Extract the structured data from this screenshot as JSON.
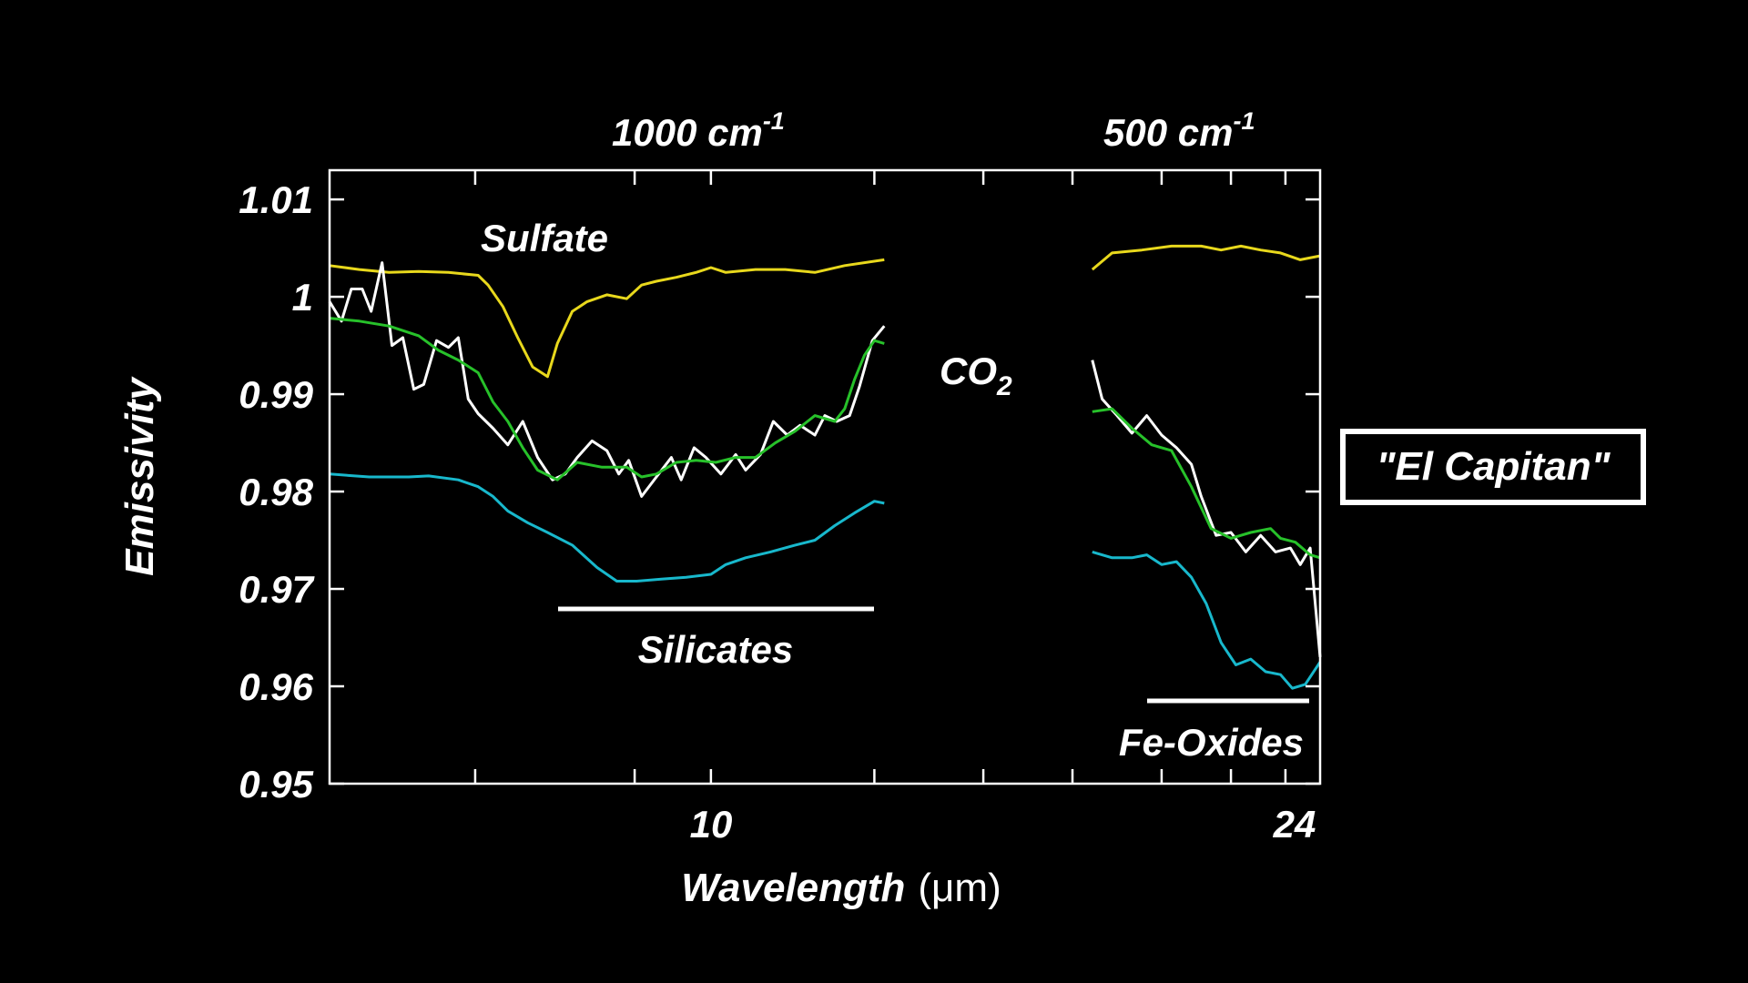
{
  "chart_data": {
    "type": "line",
    "top_axis_labels": [
      {
        "text": "1000 cm",
        "sup": "-1"
      },
      {
        "text": "500 cm",
        "sup": "-1"
      }
    ],
    "xlabel": "Wavelength",
    "xlabel_unit": "(μm)",
    "ylabel": "Emissivity",
    "x_tick_labels": [
      "10",
      "24"
    ],
    "y_ticks": [
      0.95,
      0.96,
      0.97,
      0.98,
      0.99,
      1.0,
      1.01
    ],
    "y_tick_labels": [
      "0.95",
      "0.96",
      "0.97",
      "0.98",
      "0.99",
      "1",
      "1.01"
    ],
    "ylim": [
      0.95,
      1.013
    ],
    "xlim": [
      0,
      1
    ],
    "grid": false,
    "annotations": {
      "sulfate": "Sulfate",
      "silicates": "Silicates",
      "fe_oxides": "Fe-Oxides",
      "co2_main": "CO",
      "co2_sub": "2"
    },
    "sample_box": "\"El Capitan\"",
    "segments": [
      {
        "x_range": [
          0,
          0.56
        ]
      },
      {
        "x_range": [
          0.77,
          1.0
        ]
      }
    ],
    "series": [
      {
        "color": "#e8d81c",
        "points": [
          [
            0.0,
            1.0032
          ],
          [
            0.03,
            1.0028
          ],
          [
            0.06,
            1.0025
          ],
          [
            0.09,
            1.0026
          ],
          [
            0.12,
            1.0025
          ],
          [
            0.15,
            1.0022
          ],
          [
            0.16,
            1.0012
          ],
          [
            0.175,
            0.999
          ],
          [
            0.19,
            0.9958
          ],
          [
            0.205,
            0.9928
          ],
          [
            0.22,
            0.9918
          ],
          [
            0.23,
            0.9952
          ],
          [
            0.245,
            0.9985
          ],
          [
            0.26,
            0.9995
          ],
          [
            0.28,
            1.0002
          ],
          [
            0.3,
            0.9998
          ],
          [
            0.315,
            1.0012
          ],
          [
            0.33,
            1.0016
          ],
          [
            0.35,
            1.002
          ],
          [
            0.37,
            1.0025
          ],
          [
            0.385,
            1.003
          ],
          [
            0.4,
            1.0025
          ],
          [
            0.43,
            1.0028
          ],
          [
            0.46,
            1.0028
          ],
          [
            0.49,
            1.0025
          ],
          [
            0.52,
            1.0032
          ],
          [
            0.56,
            1.0038
          ],
          [
            0.77,
            1.0028
          ],
          [
            0.79,
            1.0045
          ],
          [
            0.82,
            1.0048
          ],
          [
            0.85,
            1.0052
          ],
          [
            0.88,
            1.0052
          ],
          [
            0.9,
            1.0048
          ],
          [
            0.92,
            1.0052
          ],
          [
            0.94,
            1.0048
          ],
          [
            0.96,
            1.0045
          ],
          [
            0.98,
            1.0038
          ],
          [
            1.0,
            1.0042
          ]
        ]
      },
      {
        "color": "#ffffff",
        "points": [
          [
            0.0,
            0.9995
          ],
          [
            0.012,
            0.9975
          ],
          [
            0.022,
            1.0008
          ],
          [
            0.033,
            1.0008
          ],
          [
            0.042,
            0.9985
          ],
          [
            0.053,
            1.0035
          ],
          [
            0.063,
            0.995
          ],
          [
            0.074,
            0.9958
          ],
          [
            0.085,
            0.9905
          ],
          [
            0.095,
            0.991
          ],
          [
            0.108,
            0.9955
          ],
          [
            0.12,
            0.9948
          ],
          [
            0.13,
            0.9958
          ],
          [
            0.14,
            0.9895
          ],
          [
            0.15,
            0.988
          ],
          [
            0.165,
            0.9865
          ],
          [
            0.18,
            0.9848
          ],
          [
            0.195,
            0.9872
          ],
          [
            0.21,
            0.9835
          ],
          [
            0.225,
            0.9812
          ],
          [
            0.238,
            0.9818
          ],
          [
            0.25,
            0.9835
          ],
          [
            0.265,
            0.9852
          ],
          [
            0.28,
            0.9842
          ],
          [
            0.292,
            0.9818
          ],
          [
            0.302,
            0.9832
          ],
          [
            0.315,
            0.9795
          ],
          [
            0.33,
            0.9815
          ],
          [
            0.345,
            0.9835
          ],
          [
            0.355,
            0.9812
          ],
          [
            0.368,
            0.9845
          ],
          [
            0.38,
            0.9835
          ],
          [
            0.395,
            0.9818
          ],
          [
            0.41,
            0.9838
          ],
          [
            0.42,
            0.9822
          ],
          [
            0.435,
            0.9838
          ],
          [
            0.448,
            0.9872
          ],
          [
            0.462,
            0.9858
          ],
          [
            0.475,
            0.9868
          ],
          [
            0.49,
            0.9858
          ],
          [
            0.5,
            0.9878
          ],
          [
            0.512,
            0.9872
          ],
          [
            0.525,
            0.9878
          ],
          [
            0.535,
            0.9908
          ],
          [
            0.548,
            0.9955
          ],
          [
            0.56,
            0.997
          ],
          [
            0.77,
            0.9935
          ],
          [
            0.78,
            0.9895
          ],
          [
            0.795,
            0.9878
          ],
          [
            0.81,
            0.986
          ],
          [
            0.825,
            0.9878
          ],
          [
            0.84,
            0.9858
          ],
          [
            0.855,
            0.9845
          ],
          [
            0.87,
            0.9828
          ],
          [
            0.88,
            0.9795
          ],
          [
            0.895,
            0.9755
          ],
          [
            0.91,
            0.9758
          ],
          [
            0.925,
            0.9738
          ],
          [
            0.94,
            0.9755
          ],
          [
            0.955,
            0.9738
          ],
          [
            0.97,
            0.9742
          ],
          [
            0.98,
            0.9725
          ],
          [
            0.99,
            0.9742
          ],
          [
            1.0,
            0.963
          ]
        ]
      },
      {
        "color": "#27c12a",
        "points": [
          [
            0.0,
            0.9978
          ],
          [
            0.03,
            0.9975
          ],
          [
            0.06,
            0.997
          ],
          [
            0.09,
            0.996
          ],
          [
            0.11,
            0.9945
          ],
          [
            0.13,
            0.9935
          ],
          [
            0.15,
            0.9922
          ],
          [
            0.165,
            0.9892
          ],
          [
            0.18,
            0.9872
          ],
          [
            0.195,
            0.9845
          ],
          [
            0.21,
            0.9822
          ],
          [
            0.23,
            0.9812
          ],
          [
            0.25,
            0.983
          ],
          [
            0.275,
            0.9825
          ],
          [
            0.3,
            0.9825
          ],
          [
            0.315,
            0.9815
          ],
          [
            0.33,
            0.9818
          ],
          [
            0.35,
            0.983
          ],
          [
            0.37,
            0.9832
          ],
          [
            0.39,
            0.983
          ],
          [
            0.41,
            0.9835
          ],
          [
            0.43,
            0.9835
          ],
          [
            0.45,
            0.985
          ],
          [
            0.47,
            0.9862
          ],
          [
            0.49,
            0.9878
          ],
          [
            0.51,
            0.9872
          ],
          [
            0.52,
            0.9885
          ],
          [
            0.53,
            0.9915
          ],
          [
            0.54,
            0.994
          ],
          [
            0.55,
            0.9955
          ],
          [
            0.56,
            0.9952
          ],
          [
            0.77,
            0.9882
          ],
          [
            0.79,
            0.9885
          ],
          [
            0.81,
            0.9865
          ],
          [
            0.83,
            0.9848
          ],
          [
            0.85,
            0.9842
          ],
          [
            0.87,
            0.9805
          ],
          [
            0.89,
            0.9762
          ],
          [
            0.91,
            0.9752
          ],
          [
            0.93,
            0.9758
          ],
          [
            0.95,
            0.9762
          ],
          [
            0.96,
            0.9752
          ],
          [
            0.975,
            0.9748
          ],
          [
            0.99,
            0.9735
          ],
          [
            1.0,
            0.9732
          ]
        ]
      },
      {
        "color": "#18b8cc",
        "points": [
          [
            0.0,
            0.9818
          ],
          [
            0.04,
            0.9815
          ],
          [
            0.08,
            0.9815
          ],
          [
            0.1,
            0.9816
          ],
          [
            0.13,
            0.9812
          ],
          [
            0.15,
            0.9805
          ],
          [
            0.165,
            0.9795
          ],
          [
            0.18,
            0.978
          ],
          [
            0.2,
            0.9768
          ],
          [
            0.22,
            0.9758
          ],
          [
            0.245,
            0.9745
          ],
          [
            0.27,
            0.9722
          ],
          [
            0.29,
            0.9708
          ],
          [
            0.31,
            0.9708
          ],
          [
            0.335,
            0.971
          ],
          [
            0.36,
            0.9712
          ],
          [
            0.385,
            0.9715
          ],
          [
            0.4,
            0.9725
          ],
          [
            0.42,
            0.9732
          ],
          [
            0.445,
            0.9738
          ],
          [
            0.47,
            0.9745
          ],
          [
            0.49,
            0.975
          ],
          [
            0.51,
            0.9765
          ],
          [
            0.53,
            0.9778
          ],
          [
            0.55,
            0.979
          ],
          [
            0.56,
            0.9788
          ],
          [
            0.77,
            0.9738
          ],
          [
            0.79,
            0.9732
          ],
          [
            0.81,
            0.9732
          ],
          [
            0.825,
            0.9735
          ],
          [
            0.84,
            0.9725
          ],
          [
            0.855,
            0.9728
          ],
          [
            0.87,
            0.9712
          ],
          [
            0.885,
            0.9685
          ],
          [
            0.9,
            0.9645
          ],
          [
            0.915,
            0.9622
          ],
          [
            0.93,
            0.9628
          ],
          [
            0.945,
            0.9615
          ],
          [
            0.96,
            0.9612
          ],
          [
            0.972,
            0.9598
          ],
          [
            0.985,
            0.9602
          ],
          [
            1.0,
            0.9625
          ]
        ]
      }
    ]
  }
}
